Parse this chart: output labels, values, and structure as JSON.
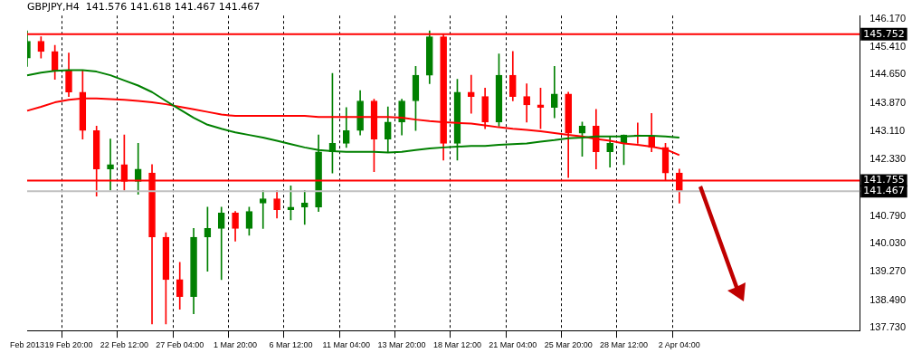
{
  "chart_data": {
    "type": "candlestick",
    "title": "GBPJPY,H4  141.576 141.618 141.467 141.467",
    "categories": [
      "Feb 2013",
      null,
      null,
      "19 Feb 20:00",
      null,
      null,
      null,
      "22 Feb 12:00",
      null,
      null,
      null,
      "27 Feb 04:00",
      null,
      null,
      null,
      "1 Mar 20:00",
      null,
      null,
      null,
      "6 Mar 12:00",
      null,
      null,
      null,
      "11 Mar 04:00",
      null,
      null,
      null,
      "13 Mar 20:00",
      null,
      null,
      null,
      "18 Mar 12:00",
      null,
      null,
      null,
      "21 Mar 04:00",
      null,
      null,
      null,
      "25 Mar 20:00",
      null,
      null,
      null,
      "28 Mar 12:00",
      null,
      null,
      null,
      "2 Apr 04:00",
      null,
      null,
      null,
      null,
      null,
      null,
      null,
      null,
      null,
      null,
      null,
      null,
      null
    ],
    "ohlc": [
      [
        145.1,
        145.84,
        144.87,
        145.56
      ],
      [
        145.56,
        145.68,
        145.1,
        145.28
      ],
      [
        145.28,
        145.45,
        144.52,
        144.75
      ],
      [
        144.75,
        145.24,
        144.05,
        144.17
      ],
      [
        144.17,
        144.75,
        142.89,
        143.12
      ],
      [
        143.12,
        143.24,
        141.33,
        142.07
      ],
      [
        142.07,
        142.89,
        141.49,
        142.19
      ],
      [
        142.19,
        143.0,
        141.49,
        141.73
      ],
      [
        141.73,
        142.77,
        141.38,
        142.07
      ],
      [
        141.96,
        142.19,
        137.84,
        140.21
      ],
      [
        140.21,
        140.33,
        137.84,
        139.05
      ],
      [
        139.05,
        139.52,
        138.24,
        138.59
      ],
      [
        138.59,
        140.45,
        138.12,
        140.21
      ],
      [
        140.21,
        141.03,
        139.28,
        140.45
      ],
      [
        140.45,
        141.03,
        139.05,
        140.87
      ],
      [
        140.87,
        140.91,
        140.1,
        140.45
      ],
      [
        140.45,
        141.03,
        140.26,
        140.91
      ],
      [
        141.14,
        141.49,
        140.45,
        141.26
      ],
      [
        141.26,
        141.49,
        140.73,
        140.96
      ],
      [
        140.96,
        141.61,
        140.68,
        141.03
      ],
      [
        141.03,
        141.49,
        140.56,
        141.14
      ],
      [
        141.03,
        143.0,
        140.91,
        142.54
      ],
      [
        142.54,
        144.68,
        141.96,
        142.77
      ],
      [
        142.77,
        143.75,
        142.66,
        143.12
      ],
      [
        143.12,
        144.21,
        143.0,
        143.93
      ],
      [
        143.93,
        143.98,
        142.0,
        142.89
      ],
      [
        142.89,
        143.77,
        142.54,
        143.35
      ],
      [
        143.35,
        143.98,
        143.0,
        143.93
      ],
      [
        143.93,
        144.87,
        143.12,
        144.63
      ],
      [
        144.63,
        145.84,
        144.4,
        145.68
      ],
      [
        145.68,
        145.75,
        142.31,
        142.77
      ],
      [
        142.77,
        144.52,
        142.31,
        144.17
      ],
      [
        144.17,
        144.63,
        143.59,
        144.05
      ],
      [
        144.05,
        144.28,
        143.17,
        143.35
      ],
      [
        143.35,
        145.21,
        143.24,
        144.63
      ],
      [
        144.63,
        145.28,
        143.93,
        144.05
      ],
      [
        144.05,
        144.4,
        143.35,
        143.82
      ],
      [
        143.82,
        144.28,
        143.17,
        143.75
      ],
      [
        143.75,
        144.87,
        143.47,
        144.12
      ],
      [
        144.12,
        144.17,
        141.84,
        143.05
      ],
      [
        143.05,
        143.35,
        142.42,
        143.24
      ],
      [
        143.24,
        143.7,
        142.07,
        142.54
      ],
      [
        142.54,
        142.96,
        142.12,
        142.77
      ],
      [
        142.77,
        143.0,
        142.19,
        143.0
      ],
      [
        143.0,
        143.33,
        142.77,
        142.96
      ],
      [
        142.96,
        143.59,
        142.54,
        142.66
      ],
      [
        142.66,
        142.77,
        141.77,
        141.96
      ],
      [
        141.96,
        142.07,
        141.14,
        141.47
      ],
      null,
      null,
      null,
      null,
      null,
      null,
      null,
      null,
      null,
      null,
      null,
      null,
      null
    ],
    "colors": [
      "#008000",
      "#ff0000",
      "#ff0000",
      "#ff0000",
      "#ff0000",
      "#ff0000",
      "#008000",
      "#ff0000",
      "#008000",
      "#ff0000",
      "#ff0000",
      "#ff0000",
      "#008000",
      "#008000",
      "#008000",
      "#ff0000",
      "#008000",
      "#008000",
      "#ff0000",
      "#008000",
      "#008000",
      "#008000",
      "#008000",
      "#008000",
      "#008000",
      "#ff0000",
      "#008000",
      "#008000",
      "#008000",
      "#008000",
      "#ff0000",
      "#008000",
      "#ff0000",
      "#ff0000",
      "#008000",
      "#ff0000",
      "#ff0000",
      "#ff0000",
      "#008000",
      "#ff0000",
      "#008000",
      "#ff0000",
      "#008000",
      "#008000",
      "#ff0000",
      "#ff0000",
      "#ff0000",
      "#ff0000",
      null,
      null,
      null,
      null,
      null,
      null,
      null,
      null,
      null,
      null,
      null,
      null,
      null
    ],
    "series": [
      {
        "type": "line",
        "color": "#008000",
        "values": [
          144.63,
          144.7,
          144.75,
          144.77,
          144.77,
          144.73,
          144.63,
          144.49,
          144.35,
          144.17,
          143.93,
          143.7,
          143.47,
          143.28,
          143.17,
          143.07,
          143.0,
          142.93,
          142.84,
          142.75,
          142.66,
          142.59,
          142.56,
          142.54,
          142.54,
          142.54,
          142.52,
          142.54,
          142.59,
          142.63,
          142.66,
          142.68,
          142.7,
          142.7,
          142.73,
          142.75,
          142.77,
          142.82,
          142.86,
          142.91,
          142.93,
          142.96,
          142.96,
          142.96,
          142.98,
          142.98,
          142.96,
          142.93,
          null,
          null,
          null,
          null,
          null,
          null,
          null,
          null,
          null,
          null,
          null,
          null,
          null
        ]
      },
      {
        "type": "line",
        "color": "#ff0000",
        "values": [
          143.66,
          143.77,
          143.89,
          143.96,
          144.0,
          144.0,
          143.98,
          143.96,
          143.93,
          143.89,
          143.84,
          143.77,
          143.7,
          143.63,
          143.56,
          143.52,
          143.52,
          143.52,
          143.52,
          143.52,
          143.52,
          143.49,
          143.49,
          143.49,
          143.49,
          143.49,
          143.49,
          143.47,
          143.42,
          143.38,
          143.35,
          143.33,
          143.31,
          143.26,
          143.21,
          143.17,
          143.14,
          143.1,
          143.05,
          143.0,
          142.96,
          142.89,
          142.84,
          142.77,
          142.73,
          142.68,
          142.61,
          142.45,
          null,
          null,
          null,
          null,
          null,
          null,
          null,
          null,
          null,
          null,
          null,
          null,
          null
        ]
      }
    ],
    "ylim": [
      137.66,
      146.26
    ],
    "yticks": [
      {
        "value": 146.17,
        "label": "146.170"
      },
      {
        "value": 145.41,
        "label": "145.410"
      },
      {
        "value": 144.65,
        "label": "144.650"
      },
      {
        "value": 143.87,
        "label": "143.870"
      },
      {
        "value": 143.11,
        "label": "143.110"
      },
      {
        "value": 142.33,
        "label": "142.330"
      },
      {
        "value": 140.79,
        "label": "140.790"
      },
      {
        "value": 140.03,
        "label": "140.030"
      },
      {
        "value": 139.27,
        "label": "139.270"
      },
      {
        "value": 138.49,
        "label": "138.490"
      },
      {
        "value": 137.73,
        "label": "137.730"
      }
    ],
    "ref_lines": [
      {
        "axis": "y",
        "value": 145.752,
        "label": "145.752",
        "color": "#ff0000"
      },
      {
        "axis": "y",
        "value": 141.755,
        "label": "141.755",
        "color": "#ff0000"
      },
      {
        "axis": "y",
        "value": 141.467,
        "label": "141.467",
        "color": "#c0c0c0"
      }
    ],
    "grid": "x",
    "legend": false,
    "marker": "none"
  }
}
